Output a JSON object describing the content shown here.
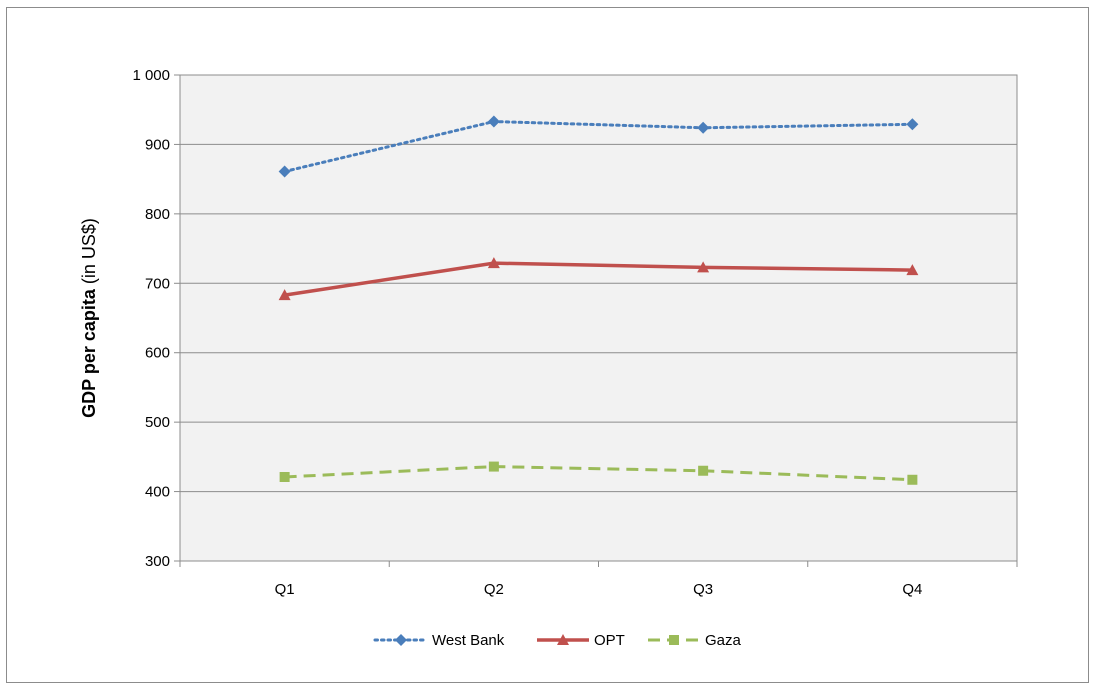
{
  "chart_data": {
    "type": "line",
    "categories": [
      "Q1",
      "Q2",
      "Q3",
      "Q4"
    ],
    "ylabel_bold": "GDP per capita",
    "ylabel_rest": " (in US$)",
    "xlabel": "",
    "ylim": [
      300,
      1000
    ],
    "y_ticks": [
      300,
      400,
      500,
      600,
      700,
      800,
      900,
      1000
    ],
    "y_tick_labels": [
      "300",
      "400",
      "500",
      "600",
      "700",
      "800",
      "900",
      "1 000"
    ],
    "grid": true,
    "legend_position": "bottom",
    "series": [
      {
        "name": "West Bank",
        "values": [
          861,
          933,
          924,
          929
        ],
        "color": "#4a7ebb",
        "dash": "dotted",
        "marker": "diamond"
      },
      {
        "name": "OPT",
        "values": [
          683,
          729,
          723,
          719
        ],
        "color": "#c0504d",
        "dash": "solid",
        "marker": "triangle"
      },
      {
        "name": "Gaza",
        "values": [
          421,
          436,
          430,
          417
        ],
        "color": "#9bbb59",
        "dash": "dashed",
        "marker": "square"
      }
    ]
  }
}
